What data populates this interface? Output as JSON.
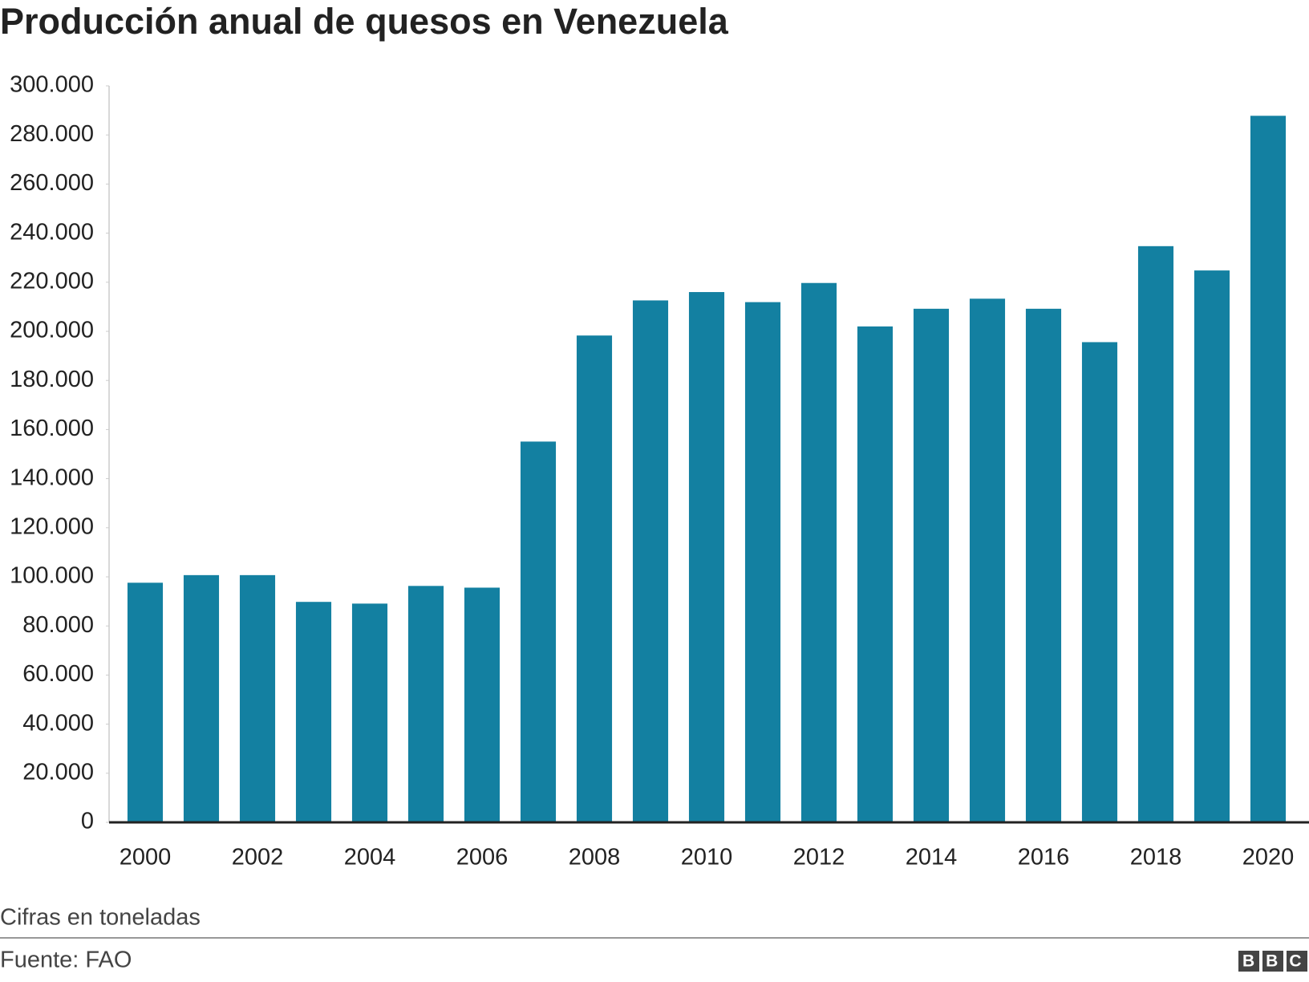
{
  "chart_data": {
    "type": "bar",
    "title": "Producción anual de quesos en Venezuela",
    "categories": [
      "2000",
      null,
      "2002",
      null,
      "2004",
      null,
      "2006",
      null,
      "2008",
      null,
      "2010",
      null,
      "2012",
      null,
      "2014",
      null,
      "2016",
      null,
      "2018",
      null,
      "2020"
    ],
    "values": [
      97600,
      100700,
      100700,
      89800,
      89100,
      96300,
      95600,
      155100,
      198300,
      212600,
      216000,
      211900,
      219700,
      202000,
      209200,
      213300,
      209200,
      195600,
      234700,
      224800,
      287800
    ],
    "color": "#1380a1",
    "ylim": [
      0,
      300000
    ],
    "yticks": [
      0,
      {
        "value": 20000,
        "label": "20.000"
      },
      {
        "value": 40000,
        "label": "40.000"
      },
      {
        "value": 60000,
        "label": "60.000"
      },
      {
        "value": 80000,
        "label": "80.000"
      },
      {
        "value": 100000,
        "label": "100.000"
      },
      {
        "value": 120000,
        "label": "120.000"
      },
      {
        "value": 140000,
        "label": "140.000"
      },
      {
        "value": 160000,
        "label": "160.000"
      },
      {
        "value": 180000,
        "label": "180.000"
      },
      {
        "value": 200000,
        "label": "200.000"
      },
      {
        "value": 220000,
        "label": "220.000"
      },
      {
        "value": 240000,
        "label": "240.000"
      },
      {
        "value": 260000,
        "label": "260.000"
      },
      {
        "value": 280000,
        "label": "280.000"
      },
      {
        "value": 300000,
        "label": "300.000"
      }
    ],
    "note": "Cifras en toneladas",
    "source": "Fuente: FAO",
    "logo": "BBC"
  }
}
